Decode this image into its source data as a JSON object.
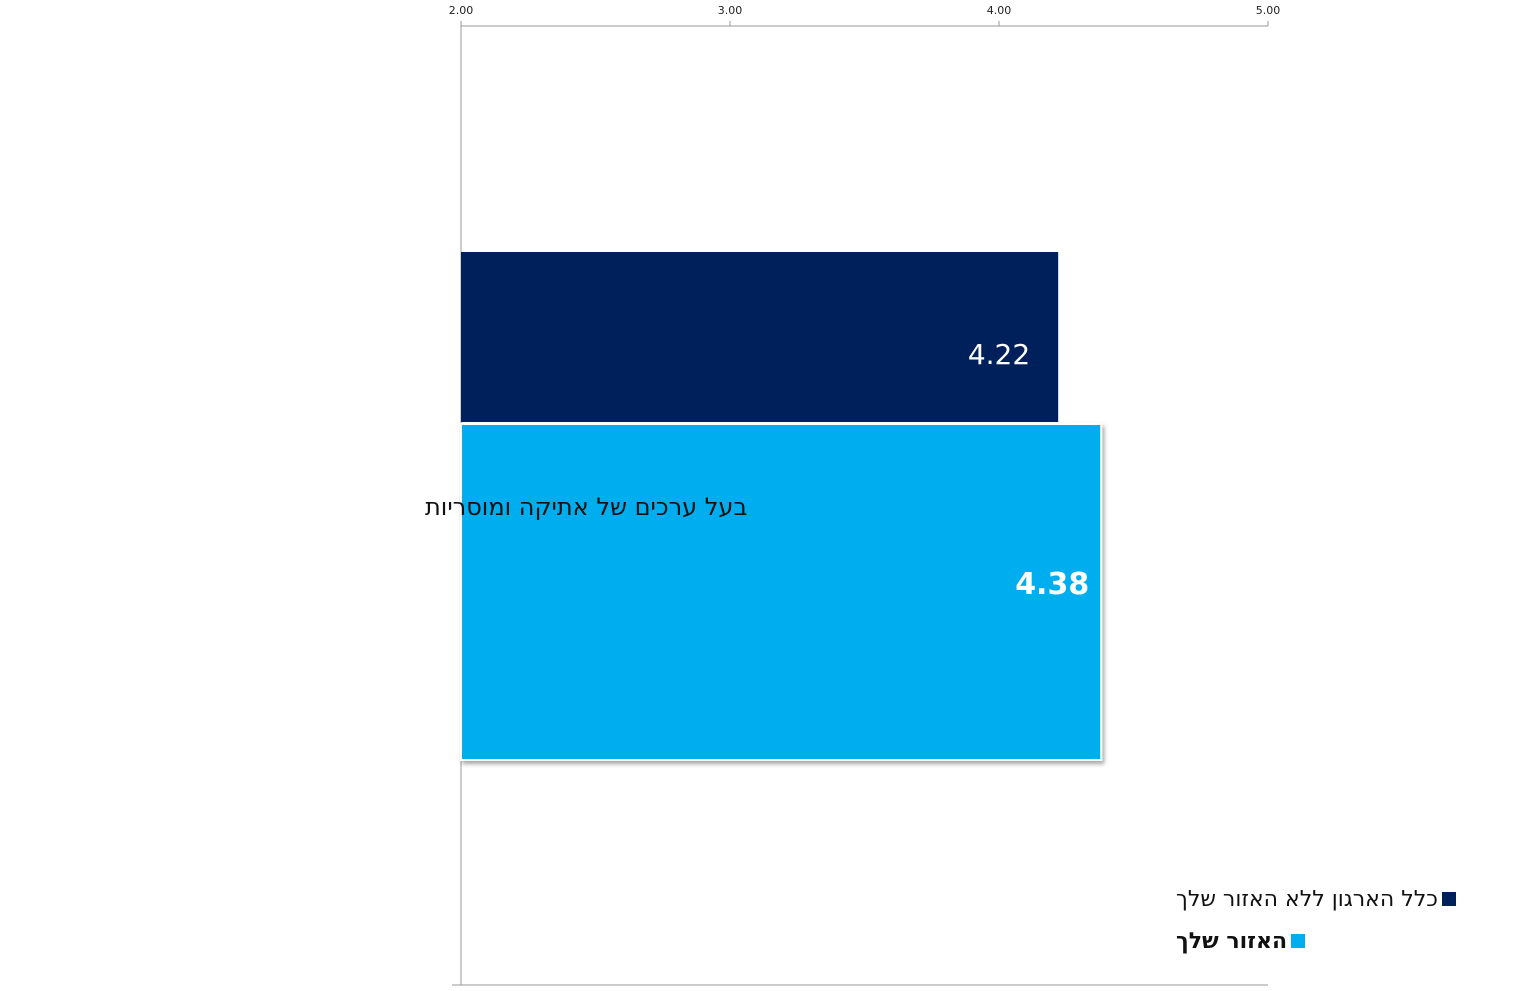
{
  "chart_data": {
    "type": "bar",
    "orientation": "horizontal",
    "categories": [
      "בעל ערכים של אתיקה ומוסריות"
    ],
    "series": [
      {
        "name": "כלל הארגון ללא האזור שלך",
        "values": [
          4.22
        ],
        "value_labels": [
          "4.22"
        ],
        "color": "#00205B"
      },
      {
        "name": "האזור שלך",
        "values": [
          4.38
        ],
        "value_labels": [
          "4.38"
        ],
        "color": "#00AEEF"
      }
    ],
    "xlim": [
      2.0,
      5.0
    ],
    "x_ticks": [
      "2.00",
      "3.00",
      "4.00",
      "5.00"
    ],
    "x_axis_position": "top",
    "grid": false,
    "legend_position": "bottom-right",
    "title": "",
    "xlabel": "",
    "ylabel": ""
  }
}
